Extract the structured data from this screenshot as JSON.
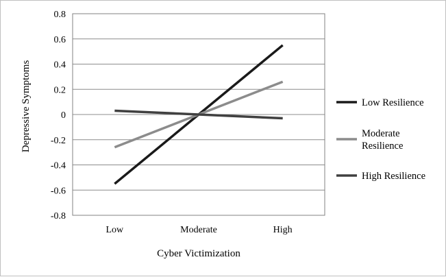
{
  "chart_data": {
    "type": "line",
    "title": "",
    "xlabel": "Cyber Victimization",
    "ylabel": "Depressive Symptoms",
    "categories": [
      "Low",
      "Moderate",
      "High"
    ],
    "ylim": [
      -0.8,
      0.8
    ],
    "yticks": [
      "0.8",
      "0.6",
      "0.4",
      "0.2",
      "0",
      "-0.2",
      "-0.4",
      "-0.6",
      "-0.8"
    ],
    "ytick_values": [
      0.8,
      0.6,
      0.4,
      0.2,
      0,
      -0.2,
      -0.4,
      -0.6,
      -0.8
    ],
    "grid": true,
    "legend_position": "right",
    "series": [
      {
        "name": "Low Resilience",
        "values": [
          -0.55,
          0,
          0.55
        ],
        "color": "#1a1a1a"
      },
      {
        "name": "Moderate Resilience",
        "name_lines": [
          "Moderate",
          "Resilience"
        ],
        "values": [
          -0.26,
          0,
          0.26
        ],
        "color": "#8c8c8c"
      },
      {
        "name": "High Resilience",
        "values": [
          0.03,
          0,
          -0.03
        ],
        "color": "#404040"
      }
    ]
  }
}
